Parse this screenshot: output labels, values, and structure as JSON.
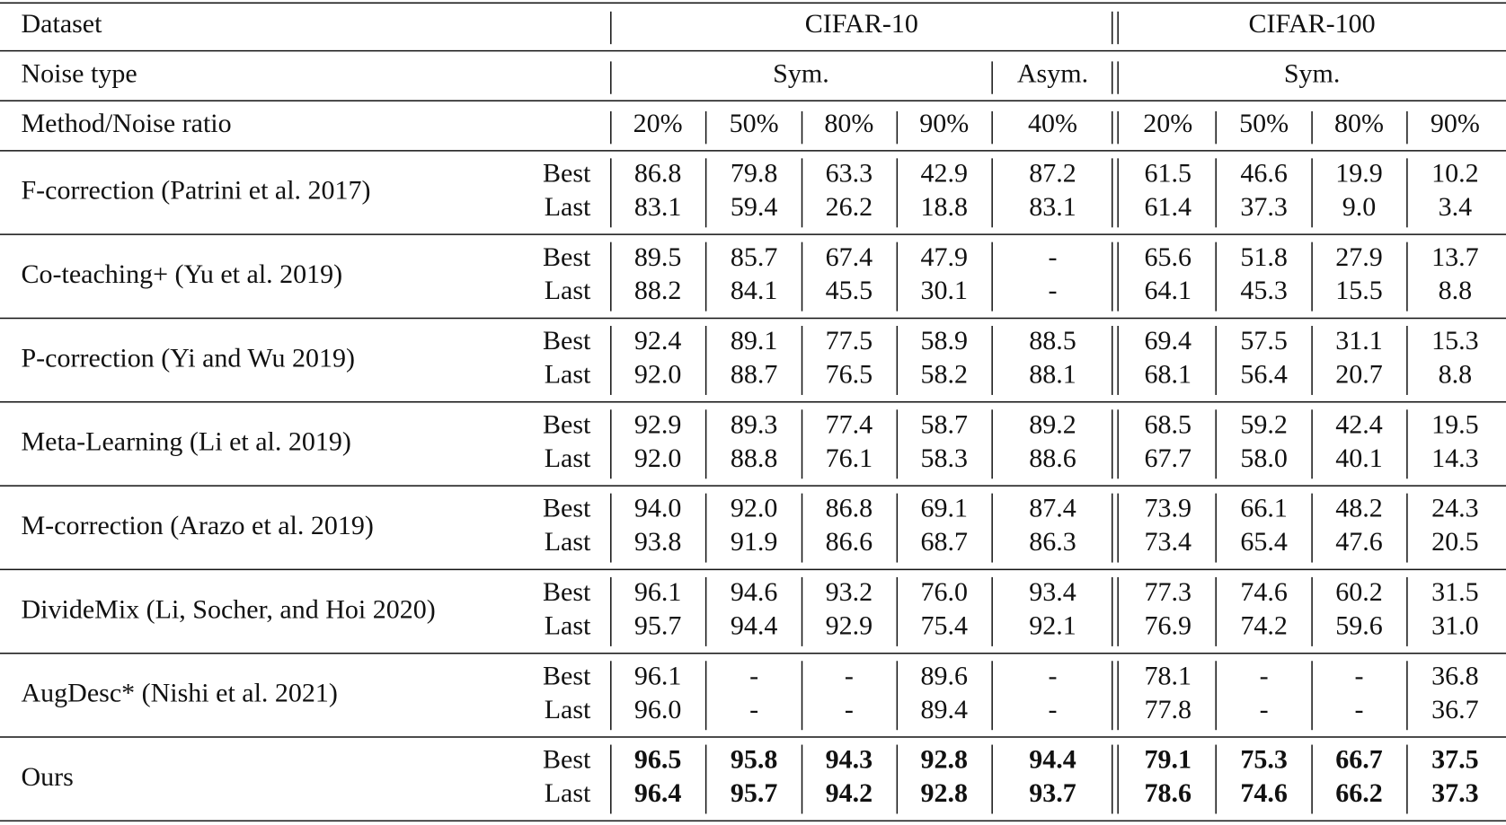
{
  "header": {
    "dataset": "Dataset",
    "cifar10": "CIFAR-10",
    "cifar100": "CIFAR-100",
    "noise_type": "Noise type",
    "sym10": "Sym.",
    "asym10": "Asym.",
    "sym100": "Sym.",
    "method_ratio": "Method/Noise ratio",
    "ratios": [
      "20%",
      "50%",
      "80%",
      "90%",
      "40%",
      "20%",
      "50%",
      "80%",
      "90%"
    ]
  },
  "rows": [
    {
      "method": "F-correction (Patrini et al. 2017)",
      "best_label": "Best",
      "last_label": "Last",
      "best": [
        "86.8",
        "79.8",
        "63.3",
        "42.9",
        "87.2",
        "61.5",
        "46.6",
        "19.9",
        "10.2"
      ],
      "last": [
        "83.1",
        "59.4",
        "26.2",
        "18.8",
        "83.1",
        "61.4",
        "37.3",
        "9.0",
        "3.4"
      ]
    },
    {
      "method": "Co-teaching+ (Yu et al. 2019)",
      "best_label": "Best",
      "last_label": "Last",
      "best": [
        "89.5",
        "85.7",
        "67.4",
        "47.9",
        "-",
        "65.6",
        "51.8",
        "27.9",
        "13.7"
      ],
      "last": [
        "88.2",
        "84.1",
        "45.5",
        "30.1",
        "-",
        "64.1",
        "45.3",
        "15.5",
        "8.8"
      ]
    },
    {
      "method": "P-correction (Yi and Wu 2019)",
      "best_label": "Best",
      "last_label": "Last",
      "best": [
        "92.4",
        "89.1",
        "77.5",
        "58.9",
        "88.5",
        "69.4",
        "57.5",
        "31.1",
        "15.3"
      ],
      "last": [
        "92.0",
        "88.7",
        "76.5",
        "58.2",
        "88.1",
        "68.1",
        "56.4",
        "20.7",
        "8.8"
      ]
    },
    {
      "method": "Meta-Learning (Li et al. 2019)",
      "best_label": "Best",
      "last_label": "Last",
      "best": [
        "92.9",
        "89.3",
        "77.4",
        "58.7",
        "89.2",
        "68.5",
        "59.2",
        "42.4",
        "19.5"
      ],
      "last": [
        "92.0",
        "88.8",
        "76.1",
        "58.3",
        "88.6",
        "67.7",
        "58.0",
        "40.1",
        "14.3"
      ]
    },
    {
      "method": "M-correction (Arazo et al. 2019)",
      "best_label": "Best",
      "last_label": "Last",
      "best": [
        "94.0",
        "92.0",
        "86.8",
        "69.1",
        "87.4",
        "73.9",
        "66.1",
        "48.2",
        "24.3"
      ],
      "last": [
        "93.8",
        "91.9",
        "86.6",
        "68.7",
        "86.3",
        "73.4",
        "65.4",
        "47.6",
        "20.5"
      ]
    },
    {
      "method": "DivideMix (Li, Socher, and Hoi 2020)",
      "best_label": "Best",
      "last_label": "Last",
      "best": [
        "96.1",
        "94.6",
        "93.2",
        "76.0",
        "93.4",
        "77.3",
        "74.6",
        "60.2",
        "31.5"
      ],
      "last": [
        "95.7",
        "94.4",
        "92.9",
        "75.4",
        "92.1",
        "76.9",
        "74.2",
        "59.6",
        "31.0"
      ]
    },
    {
      "method": "AugDesc* (Nishi et al. 2021)",
      "best_label": "Best",
      "last_label": "Last",
      "best": [
        "96.1",
        "-",
        "-",
        "89.6",
        "-",
        "78.1",
        "-",
        "-",
        "36.8"
      ],
      "last": [
        "96.0",
        "-",
        "-",
        "89.4",
        "-",
        "77.8",
        "-",
        "-",
        "36.7"
      ]
    },
    {
      "method": "Ours",
      "best_label": "Best",
      "last_label": "Last",
      "bold": true,
      "best": [
        "96.5",
        "95.8",
        "94.3",
        "92.8",
        "94.4",
        "79.1",
        "75.3",
        "66.7",
        "37.5"
      ],
      "last": [
        "96.4",
        "95.7",
        "94.2",
        "92.8",
        "93.7",
        "78.6",
        "74.6",
        "66.2",
        "37.3"
      ]
    }
  ]
}
